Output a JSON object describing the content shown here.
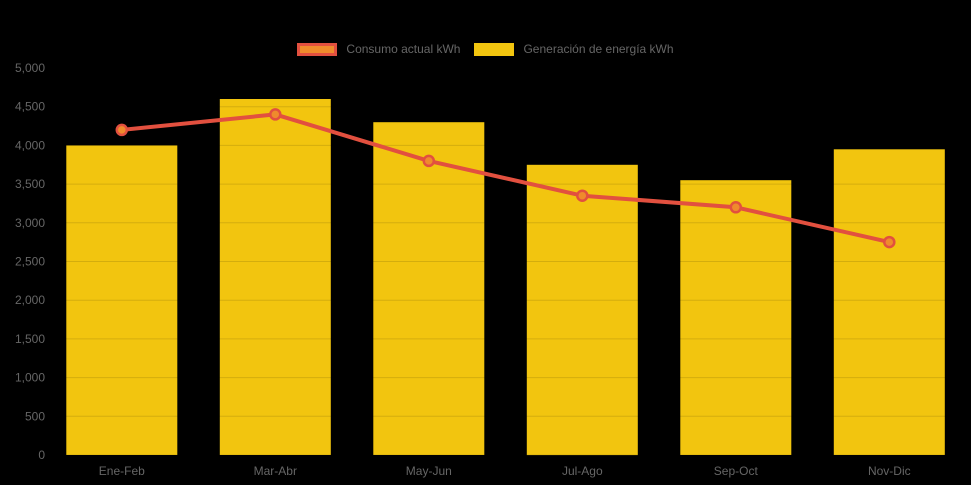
{
  "chart_data": {
    "type": "bar",
    "subtype": "bar-line-combo",
    "title": "",
    "categories": [
      "Ene-Feb",
      "Mar-Abr",
      "May-Jun",
      "Jul-Ago",
      "Sep-Oct",
      "Nov-Dic"
    ],
    "series": [
      {
        "name": "Consumo actual kWh",
        "type": "line",
        "values": [
          4200,
          4400,
          3800,
          3350,
          3200,
          2750
        ],
        "line_color": "#e2503f",
        "point_fill": "#ef8b2c",
        "point_stroke": "#e2503f"
      },
      {
        "name": "Generación de energía kWh",
        "type": "bar",
        "values": [
          4000,
          4600,
          4300,
          3750,
          3550,
          3950
        ],
        "bar_color": "#f2c50f"
      }
    ],
    "xlabel": "",
    "ylabel": "",
    "ylim": [
      0,
      5000
    ],
    "ytick_step": 500,
    "ytick_labels": [
      "0",
      "500",
      "1,000",
      "1,500",
      "2,000",
      "2,500",
      "3,000",
      "3,500",
      "4,000",
      "4,500",
      "5,000"
    ],
    "grid": "horizontal-faint",
    "gridline_color": "rgba(0,0,0,0.12)",
    "legend_position": "top-center",
    "background_color": "#000000",
    "text_color": "#666666"
  },
  "legend": {
    "items": [
      {
        "label": "Consumo actual kWh",
        "swatch_fill": "#ef8b2c",
        "swatch_border": "#e2503f"
      },
      {
        "label": "Generación de energía kWh",
        "swatch_fill": "#f2c50f",
        "swatch_border": "#f2c50f"
      }
    ]
  }
}
